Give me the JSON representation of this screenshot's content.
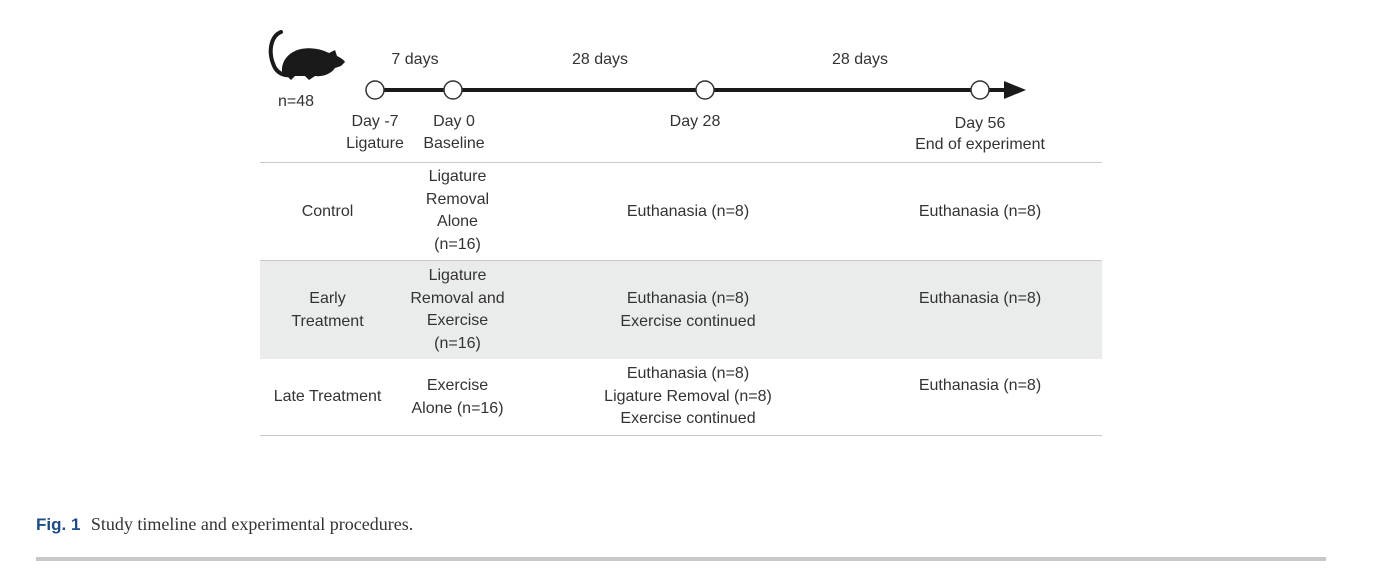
{
  "figure": {
    "sample_size": "n=48",
    "timeline": {
      "intervals": [
        "7 days",
        "28 days",
        "28 days"
      ],
      "points": [
        {
          "day": "Day -7",
          "event": "Ligature"
        },
        {
          "day": "Day 0",
          "event": "Baseline"
        },
        {
          "day": "Day 28",
          "event": ""
        },
        {
          "day": "Day 56",
          "event": "End of experiment"
        }
      ]
    },
    "table": {
      "rows": [
        {
          "group": [
            "Control"
          ],
          "baseline": [
            "Ligature",
            "Removal",
            "Alone",
            "(n=16)"
          ],
          "day28": [
            "Euthanasia (n=8)"
          ],
          "day56": [
            "Euthanasia (n=8)"
          ]
        },
        {
          "group": [
            "Early",
            "Treatment"
          ],
          "baseline": [
            "Ligature",
            "Removal and",
            "Exercise",
            "(n=16)"
          ],
          "day28": [
            "Euthanasia (n=8)",
            "Exercise continued"
          ],
          "day56": [
            "Euthanasia (n=8)"
          ]
        },
        {
          "group": [
            "Late Treatment"
          ],
          "baseline": [
            "Exercise",
            "Alone (n=16)"
          ],
          "day28": [
            "Euthanasia (n=8)",
            "Ligature Removal (n=8)",
            "Exercise continued"
          ],
          "day56": [
            "Euthanasia (n=8)"
          ]
        }
      ]
    }
  },
  "caption": {
    "label": "Fig. 1",
    "text": "Study timeline and experimental procedures."
  },
  "colors": {
    "caption_label": "#1e4a86",
    "row_shade": "#eaeceb",
    "rule": "#c8c8c8"
  }
}
